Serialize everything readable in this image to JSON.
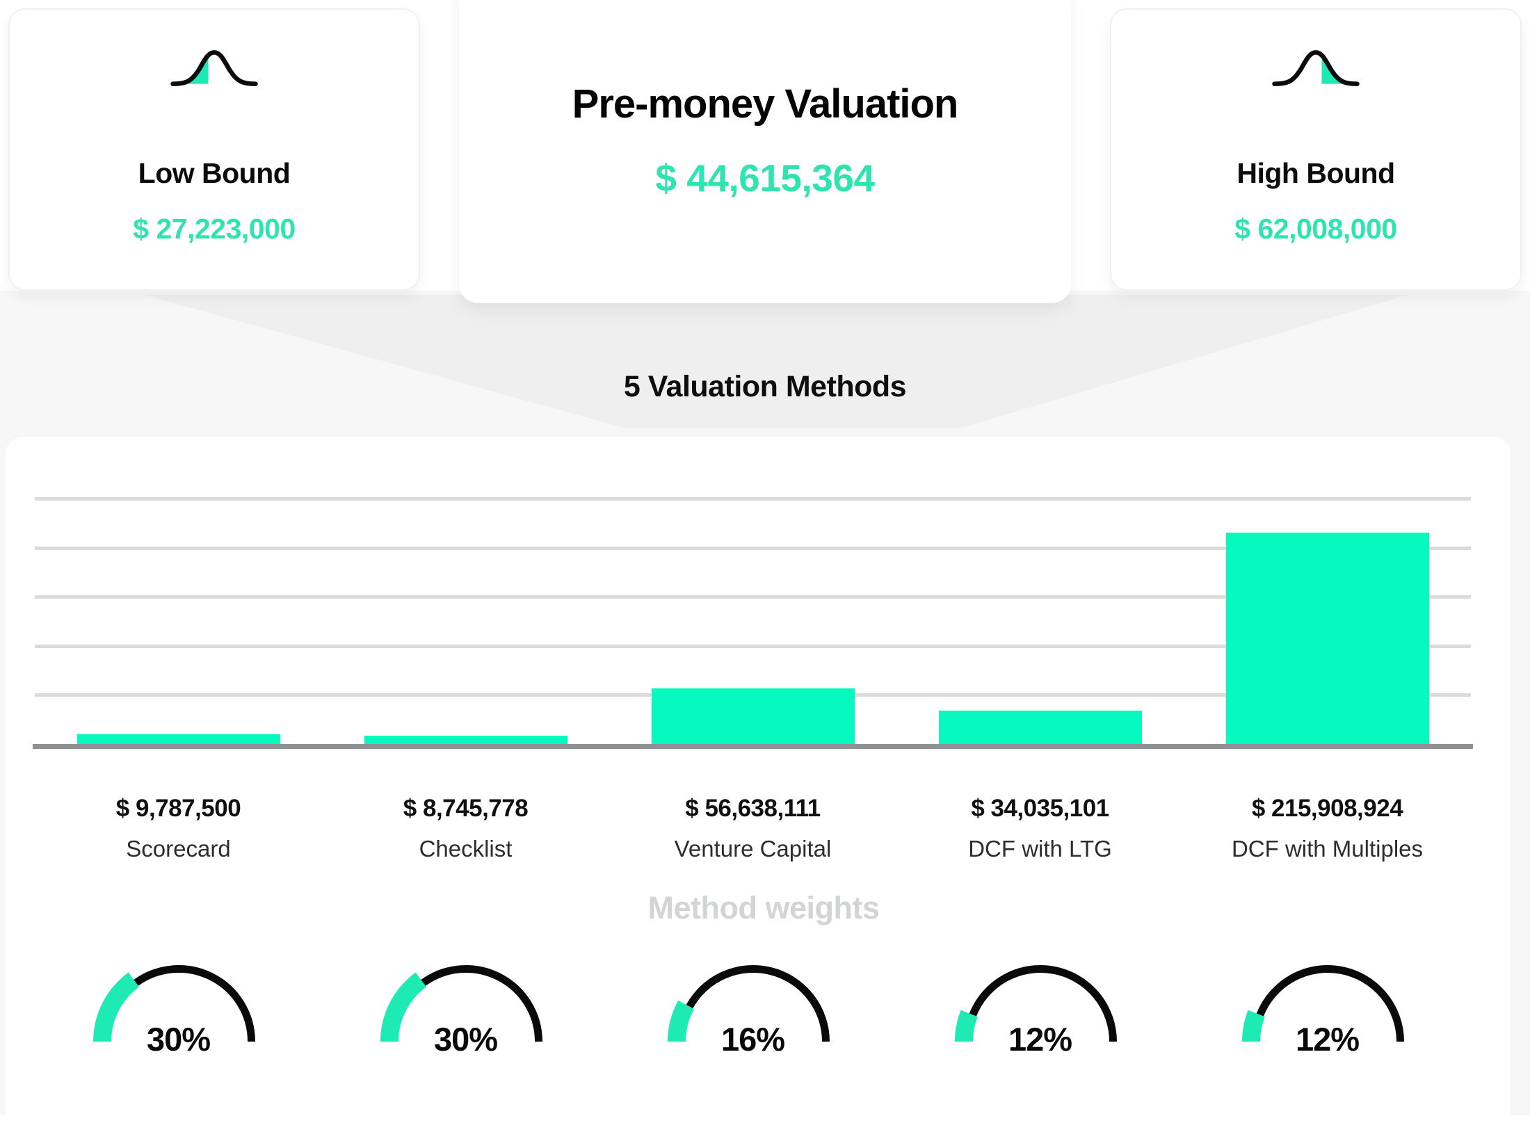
{
  "header": {
    "low_bound": {
      "label": "Low Bound",
      "value": "$ 27,223,000",
      "icon": "bell-curve-left-tail-icon"
    },
    "pre_money": {
      "title": "Pre-money Valuation",
      "value": "$ 44,615,364"
    },
    "high_bound": {
      "label": "High Bound",
      "value": "$ 62,008,000",
      "icon": "bell-curve-right-tail-icon"
    }
  },
  "funnel": {
    "label": "5 Valuation Methods"
  },
  "chart_data": [
    {
      "type": "bar",
      "title": "5 Valuation Methods",
      "categories": [
        "Scorecard",
        "Checklist",
        "Venture Capital",
        "DCF with LTG",
        "DCF with Multiples"
      ],
      "values": [
        9787500,
        8745778,
        56638111,
        34035101,
        215908924
      ],
      "value_labels": [
        "$ 9,787,500",
        "$ 8,745,778",
        "$ 56,638,111",
        "$ 34,035,101",
        "$ 215,908,924"
      ],
      "xlabel": "",
      "ylabel": "",
      "ylim": [
        0,
        265000000
      ],
      "gridline_step": 50000000,
      "grid": true,
      "legend_position": "none",
      "bar_color": "#06f9bf"
    },
    {
      "type": "pie",
      "render_style": "semicircle-gauge-row",
      "title": "Method weights",
      "categories": [
        "Scorecard",
        "Checklist",
        "Venture Capital",
        "DCF with LTG",
        "DCF with Multiples"
      ],
      "values": [
        30,
        30,
        16,
        12,
        12
      ],
      "labels": [
        "30%",
        "30%",
        "16%",
        "12%",
        "12%"
      ],
      "fill_color": "#1eeab4",
      "track_color": "#0a0a0a"
    }
  ],
  "weights_section": {
    "title": "Method weights"
  },
  "colors": {
    "accent_text": "#2fe4b0",
    "bar_fill": "#06f9bf",
    "gauge_fill": "#1eeab4",
    "gauge_track": "#0a0a0a",
    "funnel_gray": "#efeff0",
    "page_gray": "#f7f7f8",
    "gridline": "#dbdbdc",
    "axis_baseline": "#8f9091",
    "muted_title": "#d3d4d4",
    "heading_text": "#0b0b0b"
  }
}
